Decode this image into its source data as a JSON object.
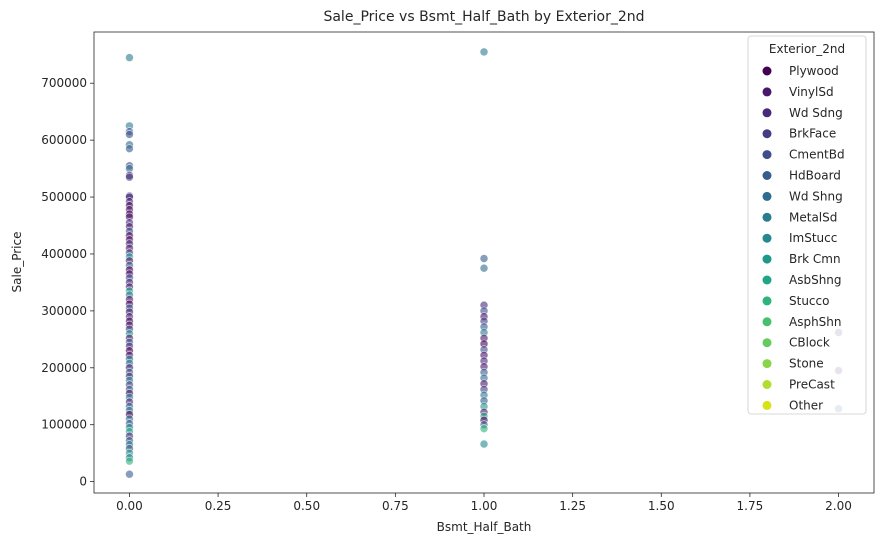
{
  "chart_data": {
    "type": "scatter",
    "title": "Sale_Price vs Bsmt_Half_Bath by Exterior_2nd",
    "xlabel": "Bsmt_Half_Bath",
    "ylabel": "Sale_Price",
    "xlim": [
      -0.1,
      2.1
    ],
    "ylim": [
      -20000,
      790000
    ],
    "x_ticks": [
      0.0,
      0.25,
      0.5,
      0.75,
      1.0,
      1.25,
      1.5,
      1.75,
      2.0
    ],
    "x_tick_labels": [
      "0.00",
      "0.25",
      "0.50",
      "0.75",
      "1.00",
      "1.25",
      "1.50",
      "1.75",
      "2.00"
    ],
    "y_ticks": [
      0,
      100000,
      200000,
      300000,
      400000,
      500000,
      600000,
      700000
    ],
    "y_tick_labels": [
      "0",
      "100000",
      "200000",
      "300000",
      "400000",
      "500000",
      "600000",
      "700000"
    ],
    "grid": false,
    "legend": {
      "title": "Exterior_2nd",
      "placement": "top-right",
      "entries": [
        {
          "name": "Plywood",
          "color": "#440154"
        },
        {
          "name": "VinylSd",
          "color": "#481769"
        },
        {
          "name": "Wd Sdng",
          "color": "#472a7a"
        },
        {
          "name": "BrkFace",
          "color": "#433d84"
        },
        {
          "name": "CmentBd",
          "color": "#3d4e8a"
        },
        {
          "name": "HdBoard",
          "color": "#355e8d"
        },
        {
          "name": "Wd Shng",
          "color": "#2e6d8e"
        },
        {
          "name": "MetalSd",
          "color": "#297b8e"
        },
        {
          "name": "ImStucc",
          "color": "#23898e"
        },
        {
          "name": "Brk Cmn",
          "color": "#1f978b"
        },
        {
          "name": "AsbShng",
          "color": "#21a585"
        },
        {
          "name": "Stucco",
          "color": "#2eb37c"
        },
        {
          "name": "AsphShn",
          "color": "#46c06f"
        },
        {
          "name": "CBlock",
          "color": "#65cb5e"
        },
        {
          "name": "Stone",
          "color": "#89d548"
        },
        {
          "name": "PreCast",
          "color": "#b0dd2f"
        },
        {
          "name": "Other",
          "color": "#d8e219"
        }
      ]
    },
    "points": [
      {
        "x": 0,
        "y": 745000,
        "c": 7
      },
      {
        "x": 0,
        "y": 625000,
        "c": 7
      },
      {
        "x": 0,
        "y": 615000,
        "c": 5
      },
      {
        "x": 0,
        "y": 610000,
        "c": 4
      },
      {
        "x": 0,
        "y": 592000,
        "c": 6
      },
      {
        "x": 0,
        "y": 585000,
        "c": 5
      },
      {
        "x": 0,
        "y": 555000,
        "c": 4
      },
      {
        "x": 0,
        "y": 550000,
        "c": 6
      },
      {
        "x": 0,
        "y": 538000,
        "c": 1
      },
      {
        "x": 0,
        "y": 535000,
        "c": 3
      },
      {
        "x": 0,
        "y": 502000,
        "c": 4
      },
      {
        "x": 0,
        "y": 500000,
        "c": 1
      },
      {
        "x": 0,
        "y": 492000,
        "c": 2
      },
      {
        "x": 0,
        "y": 485000,
        "c": 0
      },
      {
        "x": 0,
        "y": 478000,
        "c": 1
      },
      {
        "x": 0,
        "y": 470000,
        "c": 0
      },
      {
        "x": 0,
        "y": 465000,
        "c": 1
      },
      {
        "x": 0,
        "y": 455000,
        "c": 2
      },
      {
        "x": 0,
        "y": 448000,
        "c": 1
      },
      {
        "x": 0,
        "y": 440000,
        "c": 4
      },
      {
        "x": 0,
        "y": 432000,
        "c": 0
      },
      {
        "x": 0,
        "y": 425000,
        "c": 1
      },
      {
        "x": 0,
        "y": 418000,
        "c": 2
      },
      {
        "x": 0,
        "y": 410000,
        "c": 1
      },
      {
        "x": 0,
        "y": 402000,
        "c": 3
      },
      {
        "x": 0,
        "y": 395000,
        "c": 9
      },
      {
        "x": 0,
        "y": 388000,
        "c": 1
      },
      {
        "x": 0,
        "y": 380000,
        "c": 5
      },
      {
        "x": 0,
        "y": 372000,
        "c": 0
      },
      {
        "x": 0,
        "y": 365000,
        "c": 1
      },
      {
        "x": 0,
        "y": 358000,
        "c": 4
      },
      {
        "x": 0,
        "y": 350000,
        "c": 2
      },
      {
        "x": 0,
        "y": 342000,
        "c": 1
      },
      {
        "x": 0,
        "y": 335000,
        "c": 10
      },
      {
        "x": 0,
        "y": 328000,
        "c": 7
      },
      {
        "x": 0,
        "y": 320000,
        "c": 1
      },
      {
        "x": 0,
        "y": 312000,
        "c": 0
      },
      {
        "x": 0,
        "y": 305000,
        "c": 5
      },
      {
        "x": 0,
        "y": 298000,
        "c": 1
      },
      {
        "x": 0,
        "y": 290000,
        "c": 2
      },
      {
        "x": 0,
        "y": 282000,
        "c": 0
      },
      {
        "x": 0,
        "y": 275000,
        "c": 1
      },
      {
        "x": 0,
        "y": 268000,
        "c": 3
      },
      {
        "x": 0,
        "y": 260000,
        "c": 8
      },
      {
        "x": 0,
        "y": 252000,
        "c": 1
      },
      {
        "x": 0,
        "y": 245000,
        "c": 5
      },
      {
        "x": 0,
        "y": 238000,
        "c": 2
      },
      {
        "x": 0,
        "y": 230000,
        "c": 0
      },
      {
        "x": 0,
        "y": 222000,
        "c": 1
      },
      {
        "x": 0,
        "y": 215000,
        "c": 6
      },
      {
        "x": 0,
        "y": 208000,
        "c": 7
      },
      {
        "x": 0,
        "y": 200000,
        "c": 1
      },
      {
        "x": 0,
        "y": 192000,
        "c": 5
      },
      {
        "x": 0,
        "y": 185000,
        "c": 2
      },
      {
        "x": 0,
        "y": 178000,
        "c": 7
      },
      {
        "x": 0,
        "y": 170000,
        "c": 3
      },
      {
        "x": 0,
        "y": 162000,
        "c": 5
      },
      {
        "x": 0,
        "y": 155000,
        "c": 1
      },
      {
        "x": 0,
        "y": 148000,
        "c": 7
      },
      {
        "x": 0,
        "y": 140000,
        "c": 2
      },
      {
        "x": 0,
        "y": 132000,
        "c": 5
      },
      {
        "x": 0,
        "y": 125000,
        "c": 7
      },
      {
        "x": 0,
        "y": 118000,
        "c": 0
      },
      {
        "x": 0,
        "y": 110000,
        "c": 6
      },
      {
        "x": 0,
        "y": 102000,
        "c": 5
      },
      {
        "x": 0,
        "y": 95000,
        "c": 7
      },
      {
        "x": 0,
        "y": 88000,
        "c": 10
      },
      {
        "x": 0,
        "y": 80000,
        "c": 2
      },
      {
        "x": 0,
        "y": 72000,
        "c": 5
      },
      {
        "x": 0,
        "y": 65000,
        "c": 7
      },
      {
        "x": 0,
        "y": 58000,
        "c": 4
      },
      {
        "x": 0,
        "y": 50000,
        "c": 9
      },
      {
        "x": 0,
        "y": 42000,
        "c": 7
      },
      {
        "x": 0,
        "y": 36000,
        "c": 11
      },
      {
        "x": 0,
        "y": 13000,
        "c": 5
      },
      {
        "x": 1,
        "y": 755000,
        "c": 7
      },
      {
        "x": 1,
        "y": 392000,
        "c": 5
      },
      {
        "x": 1,
        "y": 375000,
        "c": 6
      },
      {
        "x": 1,
        "y": 310000,
        "c": 2
      },
      {
        "x": 1,
        "y": 300000,
        "c": 4
      },
      {
        "x": 1,
        "y": 290000,
        "c": 1
      },
      {
        "x": 1,
        "y": 282000,
        "c": 3
      },
      {
        "x": 1,
        "y": 272000,
        "c": 5
      },
      {
        "x": 1,
        "y": 262000,
        "c": 7
      },
      {
        "x": 1,
        "y": 252000,
        "c": 1
      },
      {
        "x": 1,
        "y": 242000,
        "c": 0
      },
      {
        "x": 1,
        "y": 232000,
        "c": 4
      },
      {
        "x": 1,
        "y": 222000,
        "c": 1
      },
      {
        "x": 1,
        "y": 212000,
        "c": 2
      },
      {
        "x": 1,
        "y": 202000,
        "c": 1
      },
      {
        "x": 1,
        "y": 192000,
        "c": 5
      },
      {
        "x": 1,
        "y": 182000,
        "c": 6
      },
      {
        "x": 1,
        "y": 172000,
        "c": 1
      },
      {
        "x": 1,
        "y": 162000,
        "c": 3
      },
      {
        "x": 1,
        "y": 152000,
        "c": 7
      },
      {
        "x": 1,
        "y": 142000,
        "c": 5
      },
      {
        "x": 1,
        "y": 132000,
        "c": 9
      },
      {
        "x": 1,
        "y": 122000,
        "c": 1
      },
      {
        "x": 1,
        "y": 115000,
        "c": 10
      },
      {
        "x": 1,
        "y": 108000,
        "c": 0
      },
      {
        "x": 1,
        "y": 100000,
        "c": 5
      },
      {
        "x": 1,
        "y": 93000,
        "c": 11
      },
      {
        "x": 1,
        "y": 66000,
        "c": 8
      },
      {
        "x": 2,
        "y": 262000,
        "c": 2
      },
      {
        "x": 2,
        "y": 195000,
        "c": 1
      },
      {
        "x": 2,
        "y": 128000,
        "c": 5
      }
    ]
  }
}
